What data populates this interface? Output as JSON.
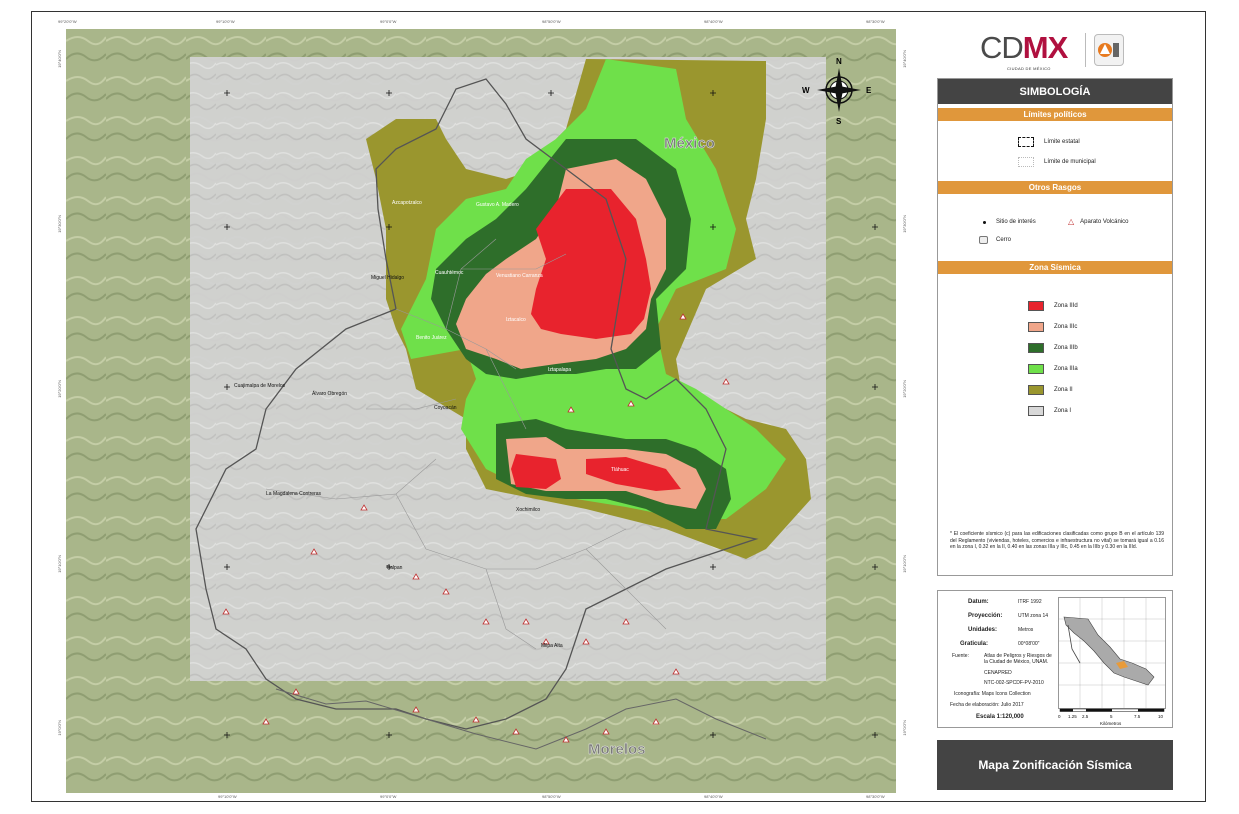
{
  "logo": {
    "brand_prefix": "CD",
    "brand_accent": "MX",
    "subtitle": "CIUDAD DE MÉXICO",
    "accent_color": "#b0103f"
  },
  "map": {
    "state_labels": {
      "mexico": "México",
      "morelos": "Morelos"
    },
    "compass": {
      "n": "N",
      "s": "S",
      "e": "E",
      "w": "W"
    },
    "place_labels": [
      "Azcapotzalco",
      "Gustavo A. Madero",
      "Cuauhtémoc",
      "Venustiano Carranza",
      "Miguel Hidalgo",
      "Iztacalco",
      "Benito Juárez",
      "Iztapalapa",
      "Coyoacán",
      "Cuajimalpa de Morelos",
      "Álvaro Obregón",
      "La Magdalena Contreras",
      "Tlalpan",
      "Xochimilco",
      "Tláhuac",
      "Milpa Alta"
    ],
    "coords_top": [
      "99°20'0\"W",
      "99°10'0\"W",
      "99°0'0\"W",
      "98°50'0\"W",
      "98°40'0\"W",
      "98°30'0\"W"
    ],
    "coords_side": [
      "19°40'0\"N",
      "19°30'0\"N",
      "19°20'0\"N",
      "19°10'0\"N",
      "19°0'0\"N"
    ]
  },
  "legend": {
    "title": "SIMBOLOGÍA",
    "sections": {
      "political": "Límites políticos",
      "other": "Otros Rasgos",
      "seismic": "Zona Sísmica"
    },
    "political_items": [
      "Límite estatal",
      "Límite de municipal"
    ],
    "other_items": {
      "site": "Sitio de interés",
      "volcano": "Aparato Volcánico",
      "hill": "Cerro"
    },
    "zones": [
      {
        "label": "Zona IIId",
        "color": "#e8232d"
      },
      {
        "label": "Zona IIIc",
        "color": "#f0a68a"
      },
      {
        "label": "Zona IIIb",
        "color": "#2e6e2a"
      },
      {
        "label": "Zona IIIa",
        "color": "#6fe04a"
      },
      {
        "label": "Zona II",
        "color": "#9a962e"
      },
      {
        "label": "Zona I",
        "color": "#d8d8d8"
      }
    ],
    "note": "* El coeficiente sísmico (c) para las edificaciones clasificadas como grupo B en el artículo 139 del Reglamento (viviendas, hoteles, comercios e infraestructura no vital) se tomará igual a 0.16 en la zona I, 0.32 en la II, 0.40 en las zonas IIIa y IIIc, 0.45 en la IIIb y 0.30 en la IIId."
  },
  "info": {
    "datum_label": "Datum:",
    "datum_value": "ITRF 1992",
    "proj_label": "Proyección:",
    "proj_value": "UTM zona 14",
    "units_label": "Unidades:",
    "units_value": "Metros",
    "grat_label": "Graticula:",
    "grat_value": "00°08'00\"",
    "source_label": "Fuente:",
    "source_1": "Atlas de Peligros y Riesgos de la Ciudad de México, UNAM.",
    "source_2": "CENAPRED",
    "source_3": "NTC-002-SPCDF-PV-2010",
    "icons": "Iconografía: Maps Icons Collection",
    "date": "Fecha de elaboración:   Julio 2017",
    "scale": "Escala 1:120,000",
    "scale_ticks": [
      "0",
      "1.25",
      "2.5",
      "5",
      "7.5",
      "10"
    ],
    "scale_unit": "Kilómetros"
  },
  "map_title": "Mapa Zonificación Sísmica"
}
